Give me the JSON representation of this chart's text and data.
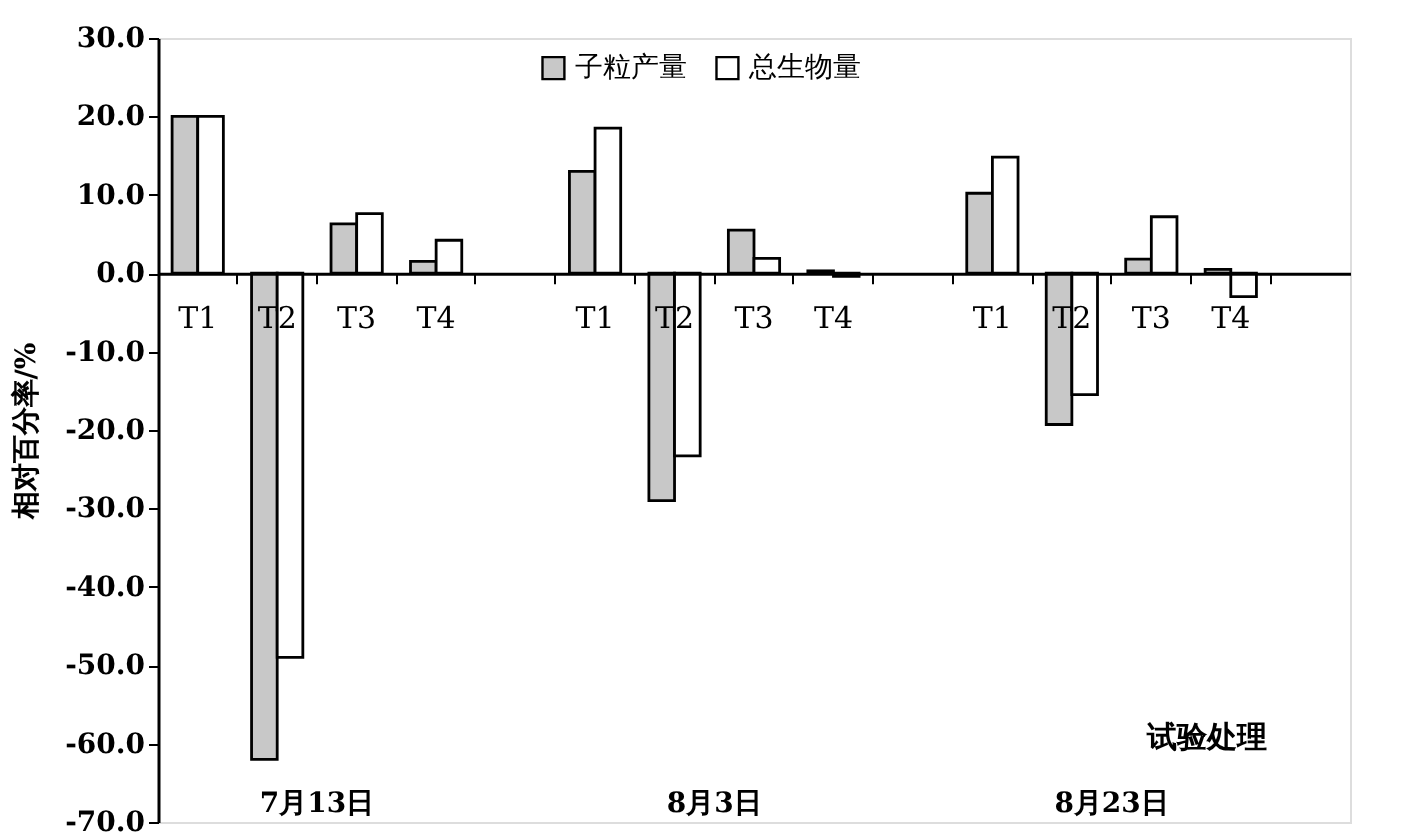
{
  "chart_data": {
    "type": "bar",
    "xlabel": "试验处理",
    "ylabel": "相对百分率/%",
    "categories": [
      "T1",
      "T2",
      "T3",
      "T4",
      null,
      "T1",
      "T2",
      "T3",
      "T4",
      null,
      "T1",
      "T2",
      "T3",
      "T4",
      null
    ],
    "series": [
      {
        "name": "子粒产量",
        "color": "#c8c8c8",
        "values": [
          20.0,
          -62.0,
          6.3,
          1.5,
          null,
          13.0,
          -29.0,
          5.5,
          0.3,
          null,
          10.2,
          -19.3,
          1.8,
          0.5,
          null
        ]
      },
      {
        "name": "总生物量",
        "color": "#ffffff",
        "values": [
          20.0,
          -49.0,
          7.6,
          4.2,
          null,
          18.5,
          -23.3,
          1.9,
          -0.4,
          null,
          14.8,
          -15.5,
          7.2,
          -3.0,
          null
        ]
      }
    ],
    "annotations": [
      "7月13日",
      "8月3日",
      "8月23日"
    ],
    "ylim": [
      -70,
      30
    ],
    "yticks": [
      {
        "value": -70,
        "label": "-70.0"
      },
      {
        "value": -60,
        "label": "-60.0"
      },
      {
        "value": -50,
        "label": "-50.0"
      },
      {
        "value": -40,
        "label": "-40.0"
      },
      {
        "value": -30,
        "label": "-30.0"
      },
      {
        "value": -20,
        "label": "-20.0"
      },
      {
        "value": -10,
        "label": "-10.0"
      },
      {
        "value": 0,
        "label": "0.0"
      },
      {
        "value": 10,
        "label": "10.0"
      },
      {
        "value": 20,
        "label": "20.0"
      },
      {
        "value": 30,
        "label": "30.0"
      }
    ],
    "grid": false,
    "legend": "top"
  }
}
